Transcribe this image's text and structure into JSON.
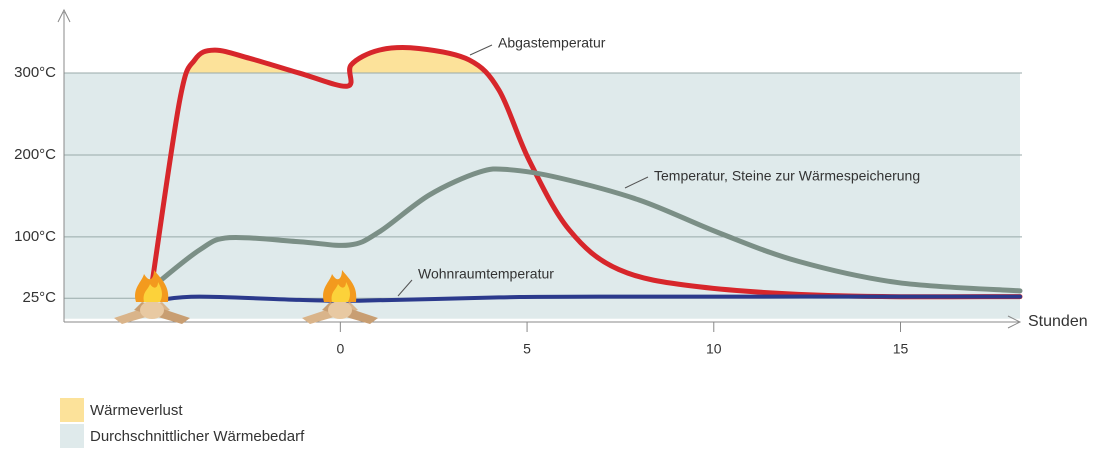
{
  "chart_data": {
    "type": "line",
    "x_label": "Stunden",
    "xlim": [
      -7.4,
      18.2
    ],
    "ylim": [
      -4,
      377
    ],
    "xticks": [
      0,
      5,
      10,
      15
    ],
    "yticks": [
      {
        "value": 25,
        "label": "25°C"
      },
      {
        "value": 100,
        "label": "100°C"
      },
      {
        "value": 200,
        "label": "200°C"
      },
      {
        "value": 300,
        "label": "300°C"
      }
    ],
    "grid": true,
    "series": [
      {
        "name": "Abgastemperatur",
        "color": "#d7262b",
        "x": [
          -5.05,
          -4.3,
          -3.9,
          -3.37,
          -2.43,
          -1.1,
          0.19,
          0.29,
          1.04,
          2.1,
          3.45,
          4.25,
          5.05,
          6.12,
          7.46,
          9.6,
          13.34,
          18.2
        ],
        "values": [
          41,
          267,
          316,
          328,
          318,
          300,
          284,
          310,
          328,
          330,
          316,
          279,
          194,
          109,
          60,
          39,
          28,
          27
        ]
      },
      {
        "name": "Temperatur, Steine zur Wärmespeicherung",
        "color": "#7b8f86",
        "x": [
          -4.97,
          -3.77,
          -2.97,
          -1.1,
          0.24,
          1.04,
          2.38,
          3.72,
          4.52,
          5.86,
          8,
          10.13,
          12.27,
          14.95,
          18.2
        ],
        "values": [
          41,
          84,
          99,
          94,
          90,
          106,
          151,
          179,
          182,
          172,
          145,
          105,
          70,
          44,
          34
        ]
      },
      {
        "name": "Wohnraumtemperatur",
        "color": "#2b3a8c",
        "x": [
          -4.84,
          -3.77,
          -1.1,
          0.5,
          4.25,
          6.92,
          18.2
        ],
        "values": [
          23,
          27,
          23,
          22,
          26,
          27,
          27
        ]
      }
    ],
    "areas": [
      {
        "name": "Wärmeverlust",
        "color": "#fce29a",
        "series": 0,
        "threshold": 300
      },
      {
        "name": "Durchschnittlicher Wärmebedarf",
        "color": "#dfeaeb",
        "range": [
          0,
          300
        ]
      }
    ]
  }
}
